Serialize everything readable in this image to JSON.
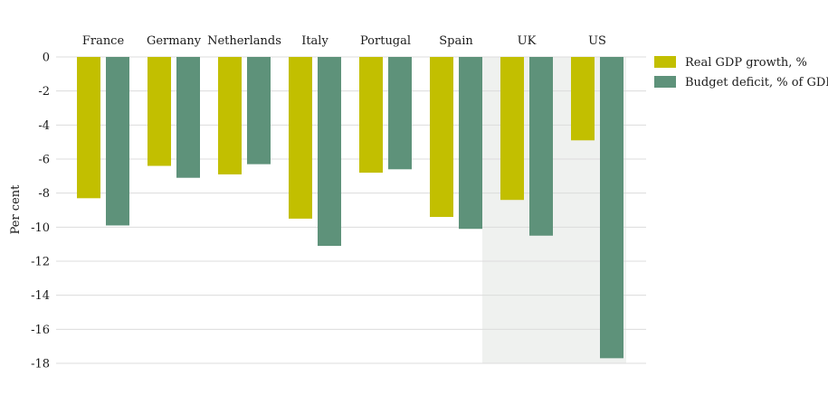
{
  "chart_data": {
    "type": "bar",
    "title": "",
    "xlabel": "",
    "ylabel": "Per cent",
    "ylim": [
      -18,
      0
    ],
    "yticks": [
      0,
      -2,
      -4,
      -6,
      -8,
      -10,
      -12,
      -14,
      -16,
      -18
    ],
    "categories": [
      "France",
      "Germany",
      "Netherlands",
      "Italy",
      "Portugal",
      "Spain",
      "UK",
      "US"
    ],
    "highlighted_categories": [
      "UK",
      "US"
    ],
    "grid": true,
    "legend_position": "right",
    "category_labels_position": "top",
    "series": [
      {
        "name": "Real GDP growth, %",
        "color": "#c2bf00",
        "values": [
          -8.3,
          -6.4,
          -6.9,
          -9.5,
          -6.8,
          -9.4,
          -8.4,
          -4.9
        ]
      },
      {
        "name": "Budget deficit, % of GDP",
        "color": "#5e927a",
        "values": [
          -9.9,
          -7.1,
          -6.3,
          -11.1,
          -6.6,
          -10.1,
          -10.5,
          -17.7
        ]
      }
    ],
    "highlight_color": "#eff1ef",
    "grid_color": "#dcdcdc"
  }
}
